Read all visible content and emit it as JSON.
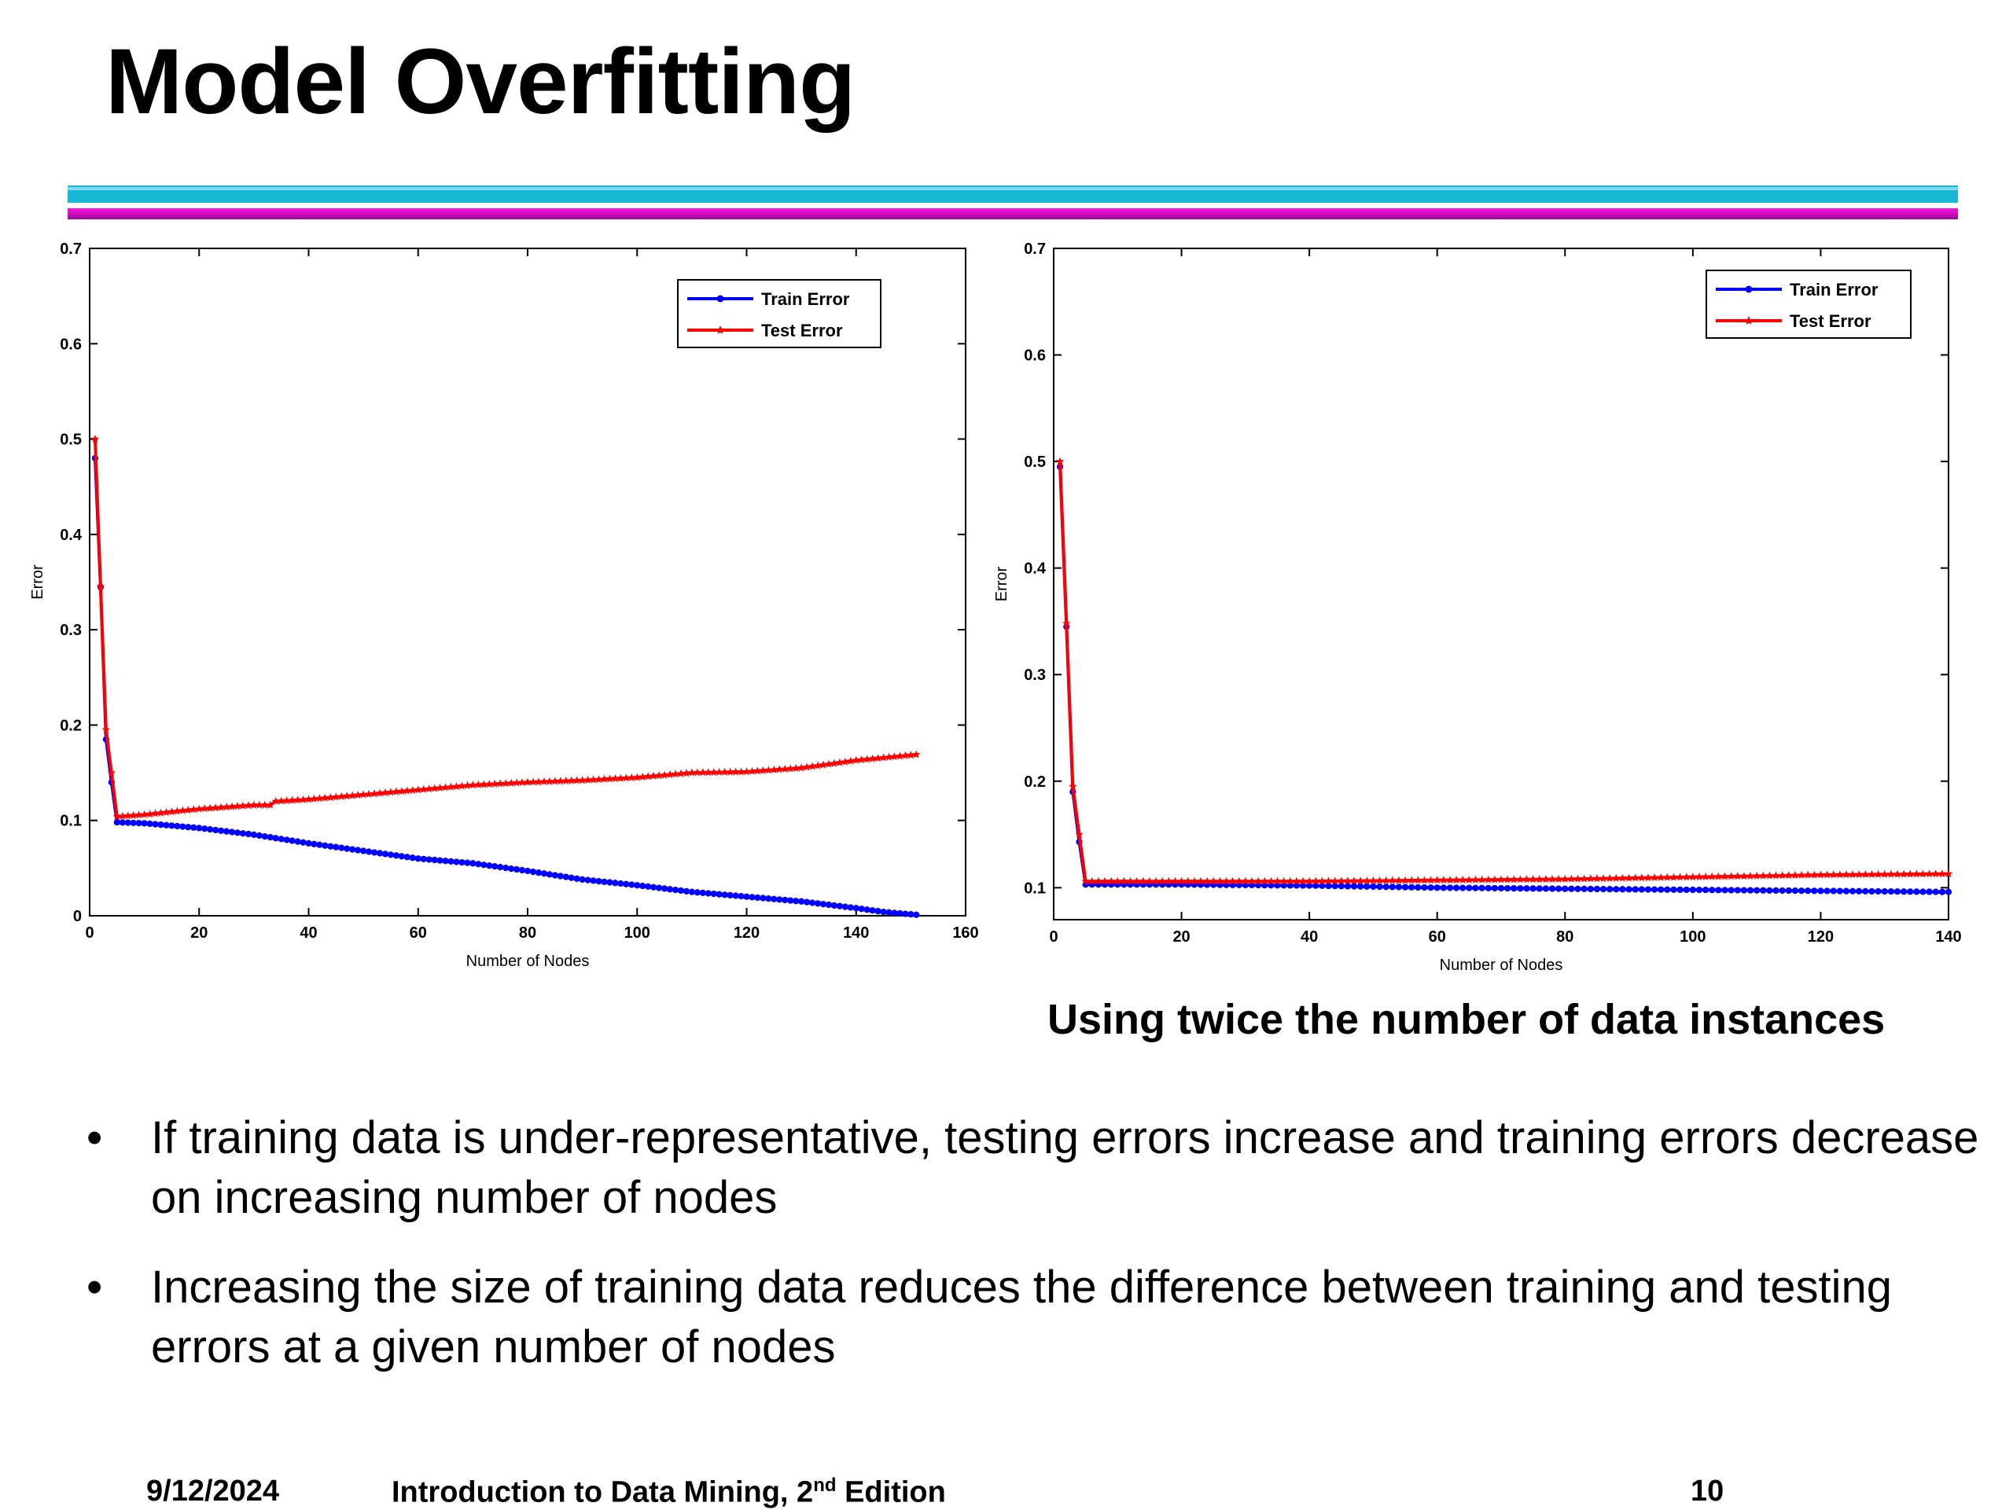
{
  "slide": {
    "title": "Model Overfitting",
    "accent_colors": {
      "cyan": "#19b7d6",
      "magenta": "#e010d0"
    },
    "caption_right": "Using twice the number of data instances",
    "bullets": [
      "If training data is under-representative, testing errors increase and training errors decrease on increasing number of nodes",
      "Increasing the size of training data reduces the difference between training and testing errors at a given number of nodes"
    ],
    "bullet_symbol": "•",
    "footer": {
      "date": "9/12/2024",
      "book_title_pre": "Introduction to Data Mining, 2",
      "book_title_sup": "nd",
      "book_title_post": " Edition",
      "page_number": "10"
    }
  },
  "chart_data": [
    {
      "type": "line",
      "xlabel": "Number of Nodes",
      "ylabel": "Error",
      "xlim": [
        0,
        160
      ],
      "ylim": [
        0,
        0.7
      ],
      "xticks": [
        "0",
        "20",
        "40",
        "60",
        "80",
        "100",
        "120",
        "140",
        "160"
      ],
      "yticks": [
        "0",
        "0.1",
        "0.2",
        "0.3",
        "0.4",
        "0.5",
        "0.6",
        "0.7"
      ],
      "grid": false,
      "legend_position": "top-right",
      "series": [
        {
          "name": "Train Error",
          "color": "#0000ff",
          "marker": "dot",
          "x": [
            1,
            2,
            3,
            4,
            5,
            10,
            20,
            30,
            40,
            50,
            60,
            70,
            80,
            90,
            100,
            110,
            120,
            130,
            140,
            145,
            151
          ],
          "y": [
            0.48,
            0.345,
            0.185,
            0.14,
            0.098,
            0.097,
            0.092,
            0.085,
            0.076,
            0.068,
            0.06,
            0.055,
            0.047,
            0.038,
            0.032,
            0.025,
            0.02,
            0.015,
            0.008,
            0.004,
            0.001
          ]
        },
        {
          "name": "Test Error",
          "color": "#ff0000",
          "marker": "star",
          "x": [
            1,
            2,
            3,
            4,
            5,
            10,
            20,
            30,
            33,
            34,
            40,
            50,
            60,
            70,
            80,
            90,
            100,
            110,
            120,
            130,
            140,
            151
          ],
          "y": [
            0.5,
            0.345,
            0.195,
            0.15,
            0.104,
            0.106,
            0.112,
            0.116,
            0.116,
            0.12,
            0.122,
            0.127,
            0.132,
            0.137,
            0.14,
            0.142,
            0.145,
            0.15,
            0.151,
            0.155,
            0.163,
            0.169
          ]
        }
      ]
    },
    {
      "type": "line",
      "xlabel": "Number of Nodes",
      "ylabel": "Error",
      "xlim": [
        0,
        140
      ],
      "ylim": [
        0.07,
        0.7
      ],
      "xticks": [
        "0",
        "20",
        "40",
        "60",
        "80",
        "100",
        "120",
        "140"
      ],
      "yticks": [
        "0.1",
        "0.2",
        "0.3",
        "0.4",
        "0.5",
        "0.6",
        "0.7"
      ],
      "grid": false,
      "legend_position": "top-right",
      "series": [
        {
          "name": "Train Error",
          "color": "#0000ff",
          "marker": "dot",
          "x": [
            1,
            2,
            3,
            4,
            5,
            20,
            40,
            60,
            80,
            100,
            120,
            140
          ],
          "y": [
            0.495,
            0.345,
            0.19,
            0.143,
            0.103,
            0.103,
            0.102,
            0.1,
            0.099,
            0.098,
            0.097,
            0.096
          ]
        },
        {
          "name": "Test Error",
          "color": "#ff0000",
          "marker": "star",
          "x": [
            1,
            2,
            3,
            4,
            5,
            20,
            40,
            60,
            80,
            100,
            120,
            140
          ],
          "y": [
            0.5,
            0.348,
            0.195,
            0.15,
            0.106,
            0.106,
            0.106,
            0.107,
            0.108,
            0.11,
            0.112,
            0.113
          ]
        }
      ]
    }
  ]
}
